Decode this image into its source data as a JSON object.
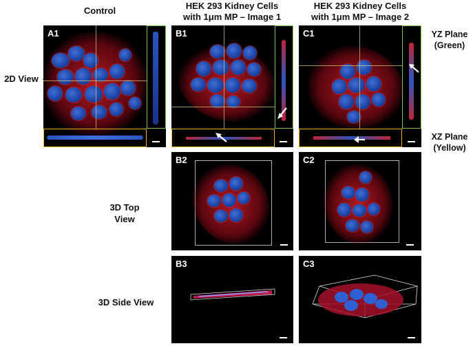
{
  "headers": {
    "control": "Control",
    "image1_line1": "HEK 293 Kidney Cells",
    "image1_line2": "with 1μm MP – Image 1",
    "image2_line1": "HEK 293 Kidney Cells",
    "image2_line2": "with 1μm MP – Image 2"
  },
  "rows": {
    "view2d": "2D View",
    "top_line1": "3D Top",
    "top_line2": "View",
    "side": "3D Side View"
  },
  "annotations": {
    "yz_line1": "YZ Plane",
    "yz_line2": "(Green)",
    "xz_line1": "XZ Plane",
    "xz_line2": "(Yellow)"
  },
  "panels": {
    "A1": "A1",
    "B1": "B1",
    "C1": "C1",
    "B2": "B2",
    "C2": "C2",
    "B3": "B3",
    "C3": "C3"
  },
  "colors": {
    "yz_green": "#7ac74f",
    "xz_yellow": "#f0b323",
    "nucleus_blue": "#2f5fd0",
    "actin_red": "#d11f2e"
  }
}
